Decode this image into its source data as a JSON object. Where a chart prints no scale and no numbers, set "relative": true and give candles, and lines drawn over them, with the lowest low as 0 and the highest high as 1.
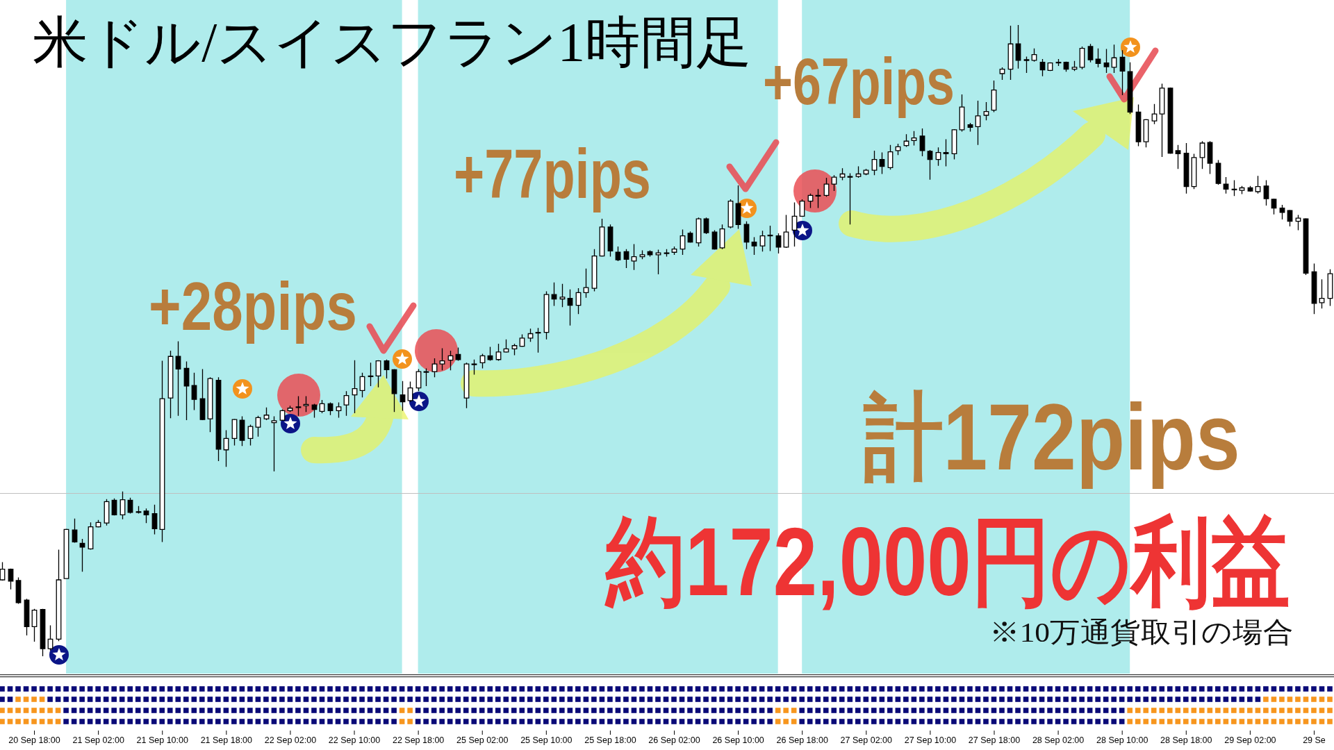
{
  "chart_data": {
    "type": "candlestick",
    "title": "米ドル/スイスフラン1時間足",
    "annotations": [
      "+28pips",
      "+77pips",
      "+67pips",
      "計172pips",
      "約172,000円の利益",
      "※10万通貨取引の場合"
    ],
    "relative": true,
    "color": "#000000",
    "tick_labels": "x",
    "categories": [
      null,
      null,
      null,
      null,
      "20 Sep 18:00",
      null,
      null,
      null,
      null,
      null,
      null,
      null,
      "21 Sep 02:00",
      null,
      null,
      null,
      null,
      null,
      null,
      null,
      "21 Sep 10:00",
      null,
      null,
      null,
      null,
      null,
      null,
      null,
      "21 Sep 18:00",
      null,
      null,
      null,
      null,
      null,
      null,
      null,
      "22 Sep 02:00",
      null,
      null,
      null,
      null,
      null,
      null,
      null,
      "22 Sep 10:00",
      null,
      null,
      null,
      null,
      null,
      null,
      null,
      "22 Sep 18:00",
      null,
      null,
      null,
      null,
      null,
      null,
      null,
      "25 Sep 02:00",
      null,
      null,
      null,
      null,
      null,
      null,
      null,
      "25 Sep 10:00",
      null,
      null,
      null,
      null,
      null,
      null,
      null,
      "25 Sep 18:00",
      null,
      null,
      null,
      null,
      null,
      null,
      null,
      "26 Sep 02:00",
      null,
      null,
      null,
      null,
      null,
      null,
      null,
      "26 Sep 10:00",
      null,
      null,
      null,
      null,
      null,
      null,
      null,
      "26 Sep 18:00",
      null,
      null,
      null,
      null,
      null,
      null,
      null,
      "27 Sep 02:00",
      null,
      null,
      null,
      null,
      null,
      null,
      null,
      "27 Sep 10:00",
      null,
      null,
      null,
      null,
      null,
      null,
      null,
      "27 Sep 18:00",
      null,
      null,
      null,
      null,
      null,
      null,
      null,
      "28 Sep 02:00",
      null,
      null,
      null,
      null,
      null,
      null,
      null,
      "28 Sep 10:00",
      null,
      null,
      null,
      null,
      null,
      null,
      null,
      "28 Sep 18:00",
      null,
      null,
      null,
      null,
      null,
      null,
      null,
      "29 Sep 02:00",
      null,
      null,
      null,
      null,
      null,
      null,
      null,
      "29 Se",
      null,
      null
    ],
    "ohlc": [
      [
        0.121,
        0.149,
        0.12,
        0.138
      ],
      [
        0.138,
        0.139,
        0.106,
        0.119
      ],
      [
        0.12,
        0.125,
        0.083,
        0.085
      ],
      [
        0.089,
        0.091,
        0.033,
        0.047
      ],
      [
        0.047,
        0.075,
        0.023,
        0.073
      ],
      [
        0.074,
        0.075,
        0,
        0.012
      ],
      [
        0.012,
        0.049,
        0.009,
        0.027
      ],
      [
        0.027,
        0.169,
        0.024,
        0.121
      ],
      [
        0.123,
        0.202,
        0.123,
        0.201
      ],
      [
        0.2,
        0.218,
        0.18,
        0.181
      ],
      [
        0.179,
        0.186,
        0.134,
        0.173
      ],
      [
        0.17,
        0.212,
        0.169,
        0.205
      ],
      [
        0.205,
        0.216,
        0.204,
        0.212
      ],
      [
        0.211,
        0.249,
        0.207,
        0.245
      ],
      [
        0.247,
        0.25,
        0.223,
        0.224
      ],
      [
        0.224,
        0.261,
        0.217,
        0.248
      ],
      [
        0.247,
        0.251,
        0.226,
        0.228
      ],
      [
        0.229,
        0.238,
        0.226,
        0.228
      ],
      [
        0.23,
        0.234,
        0.211,
        0.224
      ],
      [
        0.226,
        0.24,
        0.193,
        0.202
      ],
      [
        0.201,
        0.468,
        0.181,
        0.408
      ],
      [
        0.409,
        0.484,
        0.377,
        0.475
      ],
      [
        0.475,
        0.499,
        0.381,
        0.455
      ],
      [
        0.456,
        0.467,
        0.374,
        0.428
      ],
      [
        0.429,
        0.449,
        0.39,
        0.407
      ],
      [
        0.408,
        0.455,
        0.374,
        0.375
      ],
      [
        0.376,
        0.442,
        0.355,
        0.44
      ],
      [
        0.437,
        0.442,
        0.309,
        0.328
      ],
      [
        0.327,
        0.358,
        0.3,
        0.345
      ],
      [
        0.345,
        0.376,
        0.334,
        0.375
      ],
      [
        0.374,
        0.38,
        0.333,
        0.342
      ],
      [
        0.345,
        0.367,
        0.334,
        0.364
      ],
      [
        0.363,
        0.381,
        0.348,
        0.378
      ],
      [
        0.376,
        0.394,
        0.374,
        0.382
      ],
      [
        0.37,
        0.38,
        0.293,
        0.373
      ],
      [
        0.374,
        0.391,
        0.373,
        0.389
      ],
      [
        0.389,
        0.397,
        0.387,
        0.393
      ],
      [
        0.394,
        0.412,
        0.381,
        0.395
      ],
      [
        0.397,
        0.412,
        0.387,
        0.399
      ],
      [
        0.398,
        0.4,
        0.378,
        0.391
      ],
      [
        0.388,
        0.406,
        0.385,
        0.4
      ],
      [
        0.4,
        0.402,
        0.382,
        0.389
      ],
      [
        0.389,
        0.402,
        0.378,
        0.395
      ],
      [
        0.398,
        0.42,
        0.381,
        0.413
      ],
      [
        0.414,
        0.469,
        0.385,
        0.424
      ],
      [
        0.421,
        0.449,
        0.41,
        0.443
      ],
      [
        0.443,
        0.465,
        0.428,
        0.444
      ],
      [
        0.444,
        0.469,
        0.426,
        0.468
      ],
      [
        0.468,
        0.47,
        0.44,
        0.454
      ],
      [
        0.454,
        0.455,
        0.387,
        0.416
      ],
      [
        0.414,
        0.436,
        0.389,
        0.403
      ],
      [
        0.405,
        0.435,
        0.403,
        0.425
      ],
      [
        0.425,
        0.455,
        0.42,
        0.451
      ],
      [
        0.45,
        0.456,
        0.428,
        0.451
      ],
      [
        0.451,
        0.472,
        0.442,
        0.463
      ],
      [
        0.463,
        0.488,
        0.453,
        0.468
      ],
      [
        0.469,
        0.484,
        0.453,
        0.476
      ],
      [
        0.478,
        0.489,
        0.468,
        0.47
      ],
      [
        0.409,
        0.465,
        0.393,
        0.463
      ],
      [
        0.462,
        0.47,
        0.446,
        0.463
      ],
      [
        0.465,
        0.479,
        0.456,
        0.476
      ],
      [
        0.476,
        0.49,
        0.468,
        0.47
      ],
      [
        0.47,
        0.495,
        0.468,
        0.482
      ],
      [
        0.482,
        0.502,
        0.481,
        0.487
      ],
      [
        0.487,
        0.495,
        0.477,
        0.492
      ],
      [
        0.491,
        0.51,
        0.49,
        0.504
      ],
      [
        0.504,
        0.519,
        0.498,
        0.511
      ],
      [
        0.512,
        0.52,
        0.481,
        0.513
      ],
      [
        0.513,
        0.578,
        0.502,
        0.573
      ],
      [
        0.573,
        0.592,
        0.555,
        0.566
      ],
      [
        0.566,
        0.59,
        0.553,
        0.569
      ],
      [
        0.567,
        0.581,
        0.524,
        0.556
      ],
      [
        0.556,
        0.583,
        0.542,
        0.576
      ],
      [
        0.576,
        0.614,
        0.568,
        0.584
      ],
      [
        0.583,
        0.645,
        0.578,
        0.634
      ],
      [
        0.634,
        0.693,
        0.633,
        0.68
      ],
      [
        0.68,
        0.684,
        0.633,
        0.642
      ],
      [
        0.64,
        0.649,
        0.626,
        0.628
      ],
      [
        0.641,
        0.645,
        0.615,
        0.629
      ],
      [
        0.626,
        0.653,
        0.612,
        0.633
      ],
      [
        0.633,
        0.643,
        0.629,
        0.636
      ],
      [
        0.641,
        0.643,
        0.633,
        0.636
      ],
      [
        0.636,
        0.644,
        0.605,
        0.639
      ],
      [
        0.638,
        0.645,
        0.633,
        0.639
      ],
      [
        0.64,
        0.649,
        0.636,
        0.645
      ],
      [
        0.645,
        0.676,
        0.636,
        0.666
      ],
      [
        0.67,
        0.673,
        0.655,
        0.656
      ],
      [
        0.655,
        0.695,
        0.649,
        0.693
      ],
      [
        0.693,
        0.695,
        0.669,
        0.671
      ],
      [
        0.672,
        0.675,
        0.644,
        0.645
      ],
      [
        0.647,
        0.684,
        0.645,
        0.677
      ],
      [
        0.68,
        0.724,
        0.678,
        0.721
      ],
      [
        0.717,
        0.746,
        0.677,
        0.684
      ],
      [
        0.684,
        0.689,
        0.645,
        0.656
      ],
      [
        0.656,
        0.664,
        0.636,
        0.65
      ],
      [
        0.65,
        0.674,
        0.641,
        0.666
      ],
      [
        0.666,
        0.682,
        0.642,
        0.667
      ],
      [
        0.666,
        0.67,
        0.638,
        0.648
      ],
      [
        0.648,
        0.699,
        0.647,
        0.672
      ],
      [
        0.675,
        0.719,
        0.649,
        0.697
      ],
      [
        0.697,
        0.724,
        0.696,
        0.721
      ],
      [
        0.721,
        0.733,
        0.71,
        0.73
      ],
      [
        0.729,
        0.74,
        0.71,
        0.73
      ],
      [
        0.73,
        0.758,
        0.728,
        0.748
      ],
      [
        0.748,
        0.762,
        0.737,
        0.759
      ],
      [
        0.759,
        0.773,
        0.754,
        0.764
      ],
      [
        0.76,
        0.765,
        0.684,
        0.759
      ],
      [
        0.76,
        0.776,
        0.758,
        0.764
      ],
      [
        0.764,
        0.772,
        0.762,
        0.77
      ],
      [
        0.77,
        0.801,
        0.762,
        0.787
      ],
      [
        0.787,
        0.798,
        0.764,
        0.776
      ],
      [
        0.774,
        0.81,
        0.771,
        0.799
      ],
      [
        0.801,
        0.812,
        0.794,
        0.807
      ],
      [
        0.809,
        0.827,
        0.807,
        0.816
      ],
      [
        0.817,
        0.832,
        0.809,
        0.821
      ],
      [
        0.824,
        0.836,
        0.792,
        0.801
      ],
      [
        0.8,
        0.802,
        0.755,
        0.787
      ],
      [
        0.787,
        0.806,
        0.777,
        0.798
      ],
      [
        0.798,
        0.819,
        0.776,
        0.796
      ],
      [
        0.796,
        0.835,
        0.787,
        0.834
      ],
      [
        0.834,
        0.89,
        0.831,
        0.87
      ],
      [
        0.842,
        0.845,
        0.831,
        0.838
      ],
      [
        0.839,
        0.88,
        0.81,
        0.856
      ],
      [
        0.857,
        0.878,
        0.849,
        0.863
      ],
      [
        0.865,
        0.912,
        0.862,
        0.897
      ],
      [
        0.923,
        0.933,
        0.913,
        0.93
      ],
      [
        0.93,
        0.999,
        0.913,
        0.97
      ],
      [
        0.97,
        1,
        0.931,
        0.944
      ],
      [
        0.944,
        0.95,
        0.924,
        0.945
      ],
      [
        0.944,
        0.963,
        0.942,
        0.953
      ],
      [
        0.941,
        0.946,
        0.919,
        0.929
      ],
      [
        0.928,
        0.941,
        0.927,
        0.94
      ],
      [
        0.94,
        0.946,
        0.935,
        0.941
      ],
      [
        0.941,
        0.942,
        0.926,
        0.93
      ],
      [
        0.93,
        0.943,
        0.927,
        0.933
      ],
      [
        0.933,
        0.966,
        0.93,
        0.963
      ],
      [
        0.966,
        0.97,
        0.941,
        0.945
      ],
      [
        0.946,
        0.963,
        0.933,
        0.939
      ],
      [
        0.94,
        0.962,
        0.924,
        0.934
      ],
      [
        0.933,
        0.969,
        0.924,
        0.948
      ],
      [
        0.949,
        0.96,
        0.889,
        0.927
      ],
      [
        0.926,
        0.941,
        0.859,
        0.862
      ],
      [
        0.862,
        0.874,
        0.808,
        0.815
      ],
      [
        0.815,
        0.851,
        0.806,
        0.85
      ],
      [
        0.848,
        0.875,
        0.843,
        0.859
      ],
      [
        0.859,
        0.907,
        0.791,
        0.9
      ],
      [
        0.9,
        0.901,
        0.796,
        0.797
      ],
      [
        0.801,
        0.81,
        0.772,
        0.796
      ],
      [
        0.797,
        0.813,
        0.733,
        0.744
      ],
      [
        0.744,
        0.796,
        0.74,
        0.79
      ],
      [
        0.79,
        0.816,
        0.772,
        0.813
      ],
      [
        0.814,
        0.816,
        0.764,
        0.781
      ],
      [
        0.781,
        0.786,
        0.747,
        0.749
      ],
      [
        0.748,
        0.759,
        0.733,
        0.74
      ],
      [
        0.74,
        0.754,
        0.729,
        0.739
      ],
      [
        0.738,
        0.745,
        0.732,
        0.742
      ],
      [
        0.742,
        0.745,
        0.736,
        0.737
      ],
      [
        0.736,
        0.761,
        0.733,
        0.744
      ],
      [
        0.745,
        0.754,
        0.714,
        0.725
      ],
      [
        0.724,
        0.725,
        0.7,
        0.71
      ],
      [
        0.71,
        0.715,
        0.692,
        0.703
      ],
      [
        0.706,
        0.707,
        0.681,
        0.689
      ],
      [
        0.689,
        0.699,
        0.675,
        0.694
      ],
      [
        0.693,
        0.694,
        0.604,
        0.607
      ],
      [
        0.609,
        0.622,
        0.542,
        0.559
      ],
      [
        0.56,
        0.597,
        0.551,
        0.567
      ],
      [
        0.567,
        0.613,
        0.555,
        0.606
      ]
    ],
    "ref_lines": [
      {
        "axis": "y",
        "value": 0.258,
        "color": "#c0c0c0"
      }
    ]
  }
}
